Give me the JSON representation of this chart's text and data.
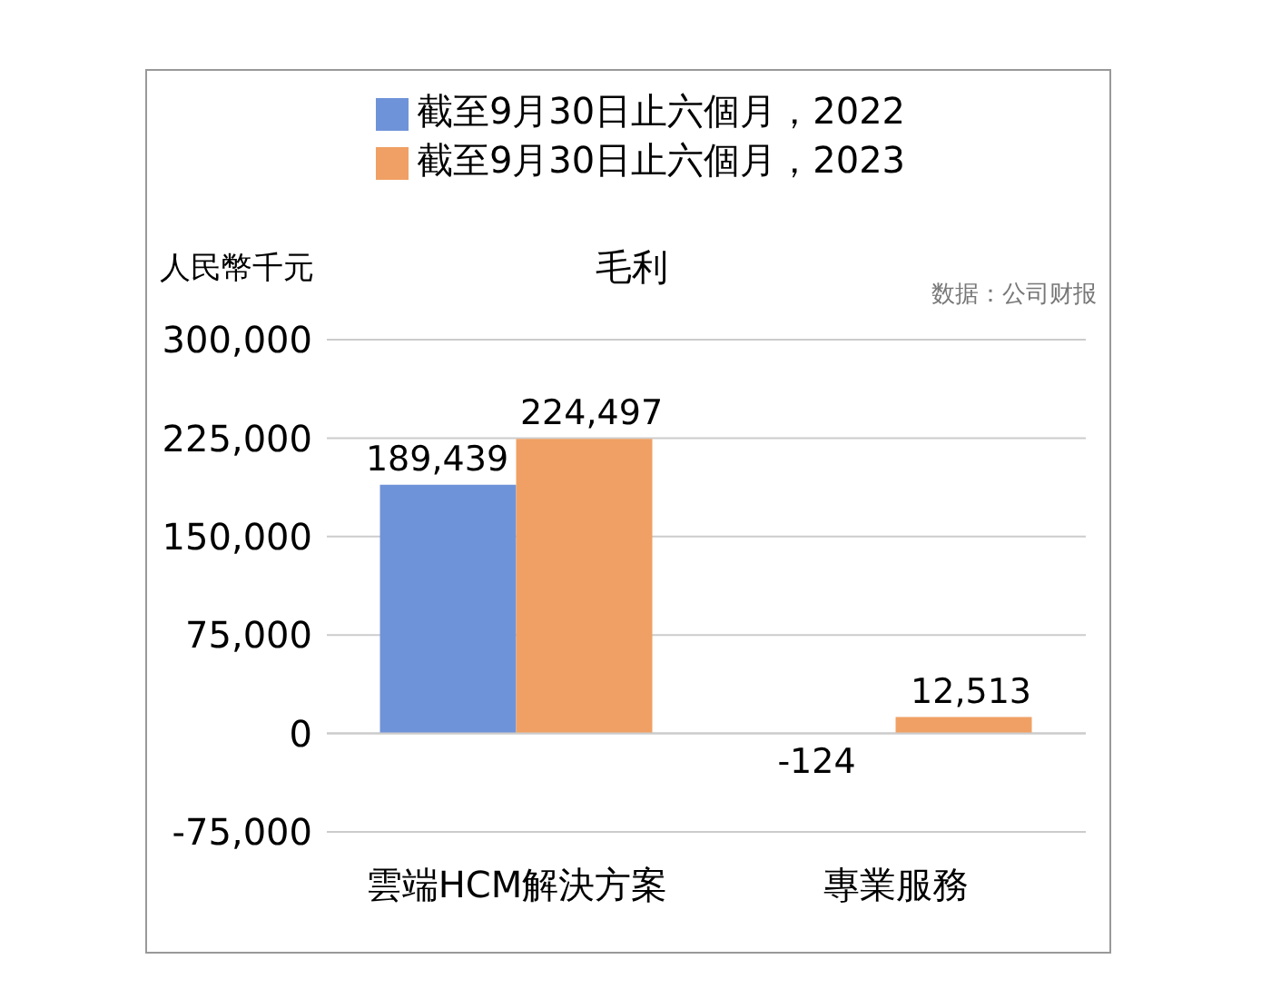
{
  "chart_data": {
    "type": "bar",
    "title": "毛利",
    "ylabel": "人民幣千元",
    "annotations": [
      "数据：公司财报"
    ],
    "categories": [
      "雲端HCM解決方案",
      "專業服務"
    ],
    "series": [
      {
        "name": "截至9月30日止六個月，2022",
        "color": "#6f93d8",
        "values": [
          189439,
          -124
        ],
        "value_labels": [
          "189,439",
          "-124"
        ]
      },
      {
        "name": "截至9月30日止六個月，2023",
        "color": "#f0a064",
        "values": [
          224497,
          12513
        ],
        "value_labels": [
          "224,497",
          "12,513"
        ]
      }
    ],
    "ylim": [
      -75000,
      300000
    ],
    "yticks": [
      {
        "value": -75000,
        "label": "-75,000"
      },
      0,
      {
        "value": 75000,
        "label": "75,000"
      },
      {
        "value": 150000,
        "label": "150,000"
      },
      {
        "value": 225000,
        "label": "225,000"
      },
      {
        "value": 300000,
        "label": "300,000"
      }
    ],
    "grid": "y",
    "legend": "top"
  }
}
